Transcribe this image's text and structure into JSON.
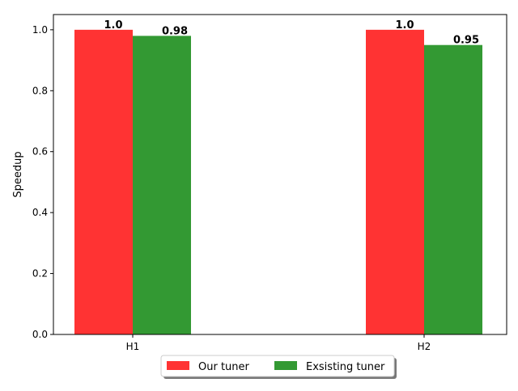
{
  "chart_data": {
    "type": "bar",
    "title": "",
    "xlabel": "",
    "ylabel": "Speedup",
    "categories": [
      "H1",
      "H2"
    ],
    "ylim": [
      0,
      1.05
    ],
    "yticks": [
      "0.0",
      "0.2",
      "0.4",
      "0.6",
      "0.8",
      "1.0"
    ],
    "grid": false,
    "legend_position": "bottom-center, below axes, two columns",
    "series": [
      {
        "name": "Our tuner",
        "color": "#ff3333",
        "values": [
          1.0,
          1.0
        ],
        "labels": [
          "1.0",
          "1.0"
        ]
      },
      {
        "name": "Exsisting tuner",
        "color": "#339933",
        "values": [
          0.98,
          0.95
        ],
        "labels": [
          "0.98",
          "0.95"
        ]
      }
    ]
  }
}
